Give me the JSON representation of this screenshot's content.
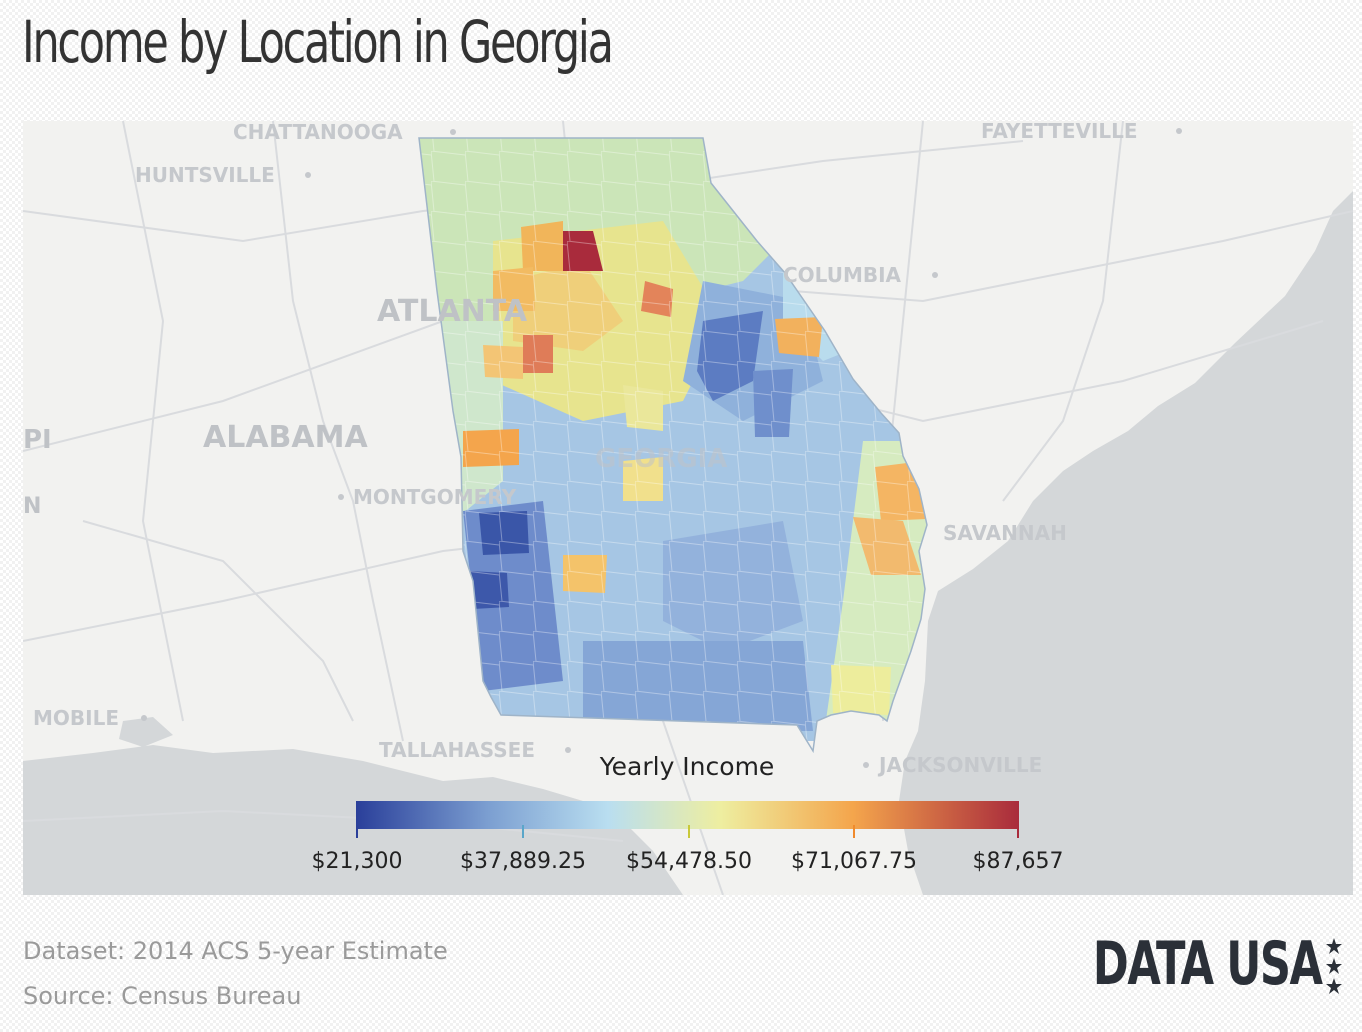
{
  "title": "Income by Location in Georgia",
  "map": {
    "cities": {
      "chattanooga": "CHATTANOOGA",
      "huntsville": "HUNTSVILLE",
      "fayetteville": "FAYETTEVILLE",
      "columbia": "COLUMBIA",
      "atlanta": "ATLANTA",
      "alabama": "ALABAMA",
      "georgia": "GEORGIA",
      "montgomery": "MONTGOMERY",
      "savannah": "SAVANNAH",
      "mobile": "MOBILE",
      "tallahassee": "TALLAHASSEE",
      "jacksonville": "JACKSONVILLE",
      "pi": "PI",
      "n": "N"
    },
    "colors": {
      "water": "#d4d7d9",
      "land": "#f2f2f0",
      "roads": "#d9dbde"
    }
  },
  "legend": {
    "title": "Yearly Income",
    "ticks": [
      "$21,300",
      "$37,889.25",
      "$54,478.50",
      "$71,067.75",
      "$87,657"
    ],
    "min": 21300,
    "max": 87657,
    "colors": [
      "#2a3f9a",
      "#7c9fd1",
      "#b9def0",
      "#eeeea0",
      "#f4a54c",
      "#a92b3c"
    ]
  },
  "footer": {
    "dataset": "Dataset: 2014 ACS 5-year Estimate",
    "source": "Source: Census Bureau"
  },
  "brand": "DATA USA"
}
